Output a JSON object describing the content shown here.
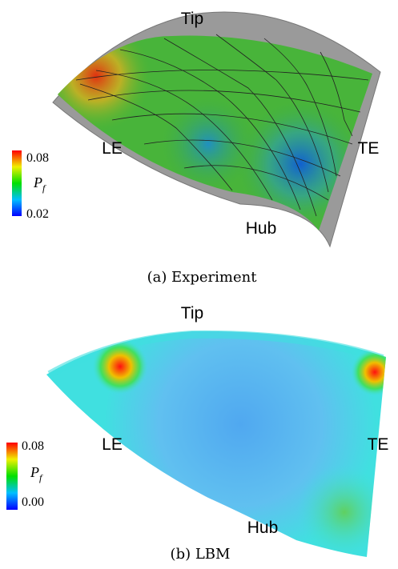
{
  "panels": [
    {
      "caption": "(a) Experiment",
      "labels": {
        "tip": "Tip",
        "le": "LE",
        "te": "TE",
        "hub": "Hub"
      },
      "colorbar": {
        "max": "0.08",
        "symbol": "P",
        "subscript": "f",
        "min": "0.02"
      }
    },
    {
      "caption": "(b) LBM",
      "labels": {
        "tip": "Tip",
        "le": "LE",
        "te": "TE",
        "hub": "Hub"
      },
      "colorbar": {
        "max": "0.08",
        "symbol": "P",
        "subscript": "f",
        "min": "0.00"
      }
    }
  ]
}
